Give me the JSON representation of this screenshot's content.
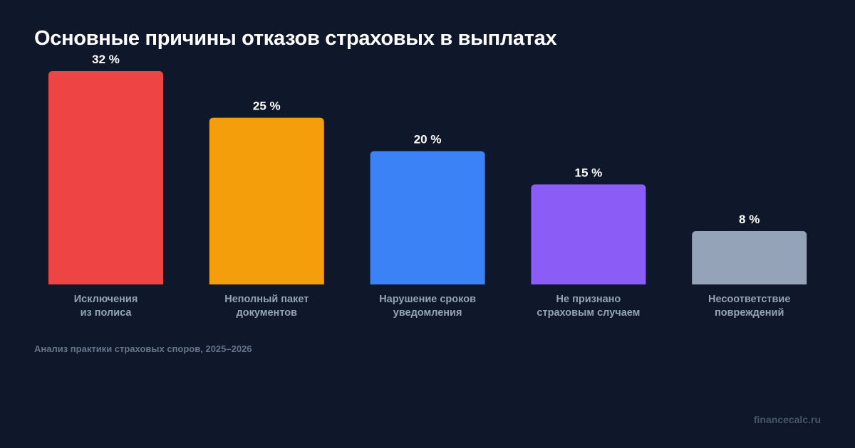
{
  "chart_data": {
    "type": "bar",
    "title": "Основные причины отказов страховых в выплатах",
    "categories": [
      [
        "Исключения",
        "из полиса"
      ],
      [
        "Неполный пакет",
        "документов"
      ],
      [
        "Нарушение сроков",
        "уведомления"
      ],
      [
        "Не признано",
        "страховым случаем"
      ],
      [
        "Несоответствие",
        "повреждений"
      ]
    ],
    "values": [
      32,
      25,
      20,
      15,
      8
    ],
    "data_labels": [
      "32 %",
      "25 %",
      "20 %",
      "15 %",
      "8 %"
    ],
    "colors": [
      "#ef4444",
      "#f59e0b",
      "#3b82f6",
      "#8b5cf6",
      "#94a3b8"
    ],
    "unit": "%",
    "ylim": [
      0,
      32
    ],
    "grid": false,
    "xlabel": "",
    "ylabel": ""
  },
  "source": "Анализ практики страховых споров, 2025–2026",
  "brand": "financecalc.ru"
}
